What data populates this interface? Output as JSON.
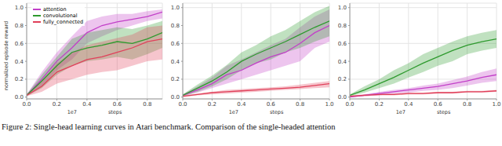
{
  "chart_data": [
    {
      "type": "line",
      "ylabel": "normalized episode reward",
      "xlabel": "steps",
      "annotations": [
        "1e7"
      ],
      "legend": "upper left",
      "grid": true,
      "x": [
        0.0,
        0.1,
        0.2,
        0.3,
        0.4,
        0.5,
        0.6,
        0.7,
        0.8,
        0.9
      ],
      "xlim": [
        0,
        0.9
      ],
      "xticks": [
        {
          "value": 0,
          "label": "0.0"
        },
        {
          "value": 0.2,
          "label": "0.2"
        },
        {
          "value": 0.4,
          "label": "0.4"
        },
        {
          "value": 0.6,
          "label": "0.6"
        },
        {
          "value": 0.8,
          "label": "0.8"
        }
      ],
      "ylim": [
        -0.02,
        1.05
      ],
      "yticks": [
        {
          "value": 0,
          "label": "0.0"
        },
        {
          "value": 0.2,
          "label": "0.2"
        },
        {
          "value": 0.4,
          "label": "0.4"
        },
        {
          "value": 0.6,
          "label": "0.6"
        },
        {
          "value": 0.8,
          "label": "0.8"
        },
        {
          "value": 1,
          "label": "1.0"
        }
      ],
      "series": [
        {
          "name": "attention",
          "color": "#c23fc8",
          "values": [
            0.02,
            0.2,
            0.4,
            0.55,
            0.72,
            0.8,
            0.84,
            0.87,
            0.9,
            0.95
          ],
          "lower": [
            0.01,
            0.12,
            0.3,
            0.42,
            0.6,
            0.68,
            0.75,
            0.8,
            0.85,
            0.88
          ],
          "upper": [
            0.03,
            0.28,
            0.5,
            0.68,
            0.85,
            0.9,
            0.93,
            0.93,
            0.96,
            0.98
          ]
        },
        {
          "name": "convolutional",
          "color": "#2e9a2e",
          "values": [
            0.02,
            0.18,
            0.35,
            0.5,
            0.55,
            0.58,
            0.62,
            0.6,
            0.65,
            0.72
          ],
          "lower": [
            0.01,
            0.1,
            0.25,
            0.35,
            0.4,
            0.42,
            0.45,
            0.42,
            0.48,
            0.55
          ],
          "upper": [
            0.03,
            0.25,
            0.45,
            0.65,
            0.72,
            0.75,
            0.78,
            0.76,
            0.8,
            0.85
          ]
        },
        {
          "name": "fully_connected",
          "color": "#e0405a",
          "values": [
            0.02,
            0.12,
            0.28,
            0.35,
            0.42,
            0.45,
            0.5,
            0.55,
            0.62,
            0.65
          ],
          "lower": [
            0.01,
            0.06,
            0.15,
            0.2,
            0.25,
            0.28,
            0.3,
            0.35,
            0.4,
            0.42
          ],
          "upper": [
            0.03,
            0.18,
            0.38,
            0.5,
            0.58,
            0.62,
            0.66,
            0.7,
            0.78,
            0.8
          ]
        }
      ]
    },
    {
      "type": "line",
      "xlabel": "steps",
      "annotations": [
        "1e7"
      ],
      "grid": true,
      "x": [
        0.0,
        0.1,
        0.2,
        0.3,
        0.4,
        0.5,
        0.6,
        0.7,
        0.8,
        0.9,
        1.0
      ],
      "xlim": [
        0,
        1
      ],
      "xticks": [
        {
          "value": 0,
          "label": "0.0"
        },
        {
          "value": 0.2,
          "label": "0.2"
        },
        {
          "value": 0.4,
          "label": "0.4"
        },
        {
          "value": 0.6,
          "label": "0.6"
        },
        {
          "value": 0.8,
          "label": "0.8"
        },
        {
          "value": 1,
          "label": "1.0"
        }
      ],
      "ylim": [
        -0.02,
        1.05
      ],
      "yticks": [
        {
          "value": 0,
          "label": "0.0"
        },
        {
          "value": 0.2,
          "label": "0.2"
        },
        {
          "value": 0.4,
          "label": "0.4"
        },
        {
          "value": 0.6,
          "label": "0.6"
        },
        {
          "value": 0.8,
          "label": "0.8"
        },
        {
          "value": 1,
          "label": "1.0"
        }
      ],
      "series": [
        {
          "name": "attention",
          "color": "#c23fc8",
          "values": [
            0.02,
            0.08,
            0.15,
            0.25,
            0.3,
            0.38,
            0.45,
            0.5,
            0.6,
            0.72,
            0.8
          ],
          "lower": [
            0.01,
            0.05,
            0.1,
            0.15,
            0.2,
            0.25,
            0.3,
            0.35,
            0.4,
            0.55,
            0.62
          ],
          "upper": [
            0.03,
            0.12,
            0.22,
            0.35,
            0.42,
            0.5,
            0.58,
            0.65,
            0.78,
            0.9,
            0.98
          ]
        },
        {
          "name": "convolutional",
          "color": "#2e9a2e",
          "values": [
            0.02,
            0.1,
            0.18,
            0.28,
            0.4,
            0.48,
            0.55,
            0.62,
            0.7,
            0.78,
            0.85
          ],
          "lower": [
            0.01,
            0.06,
            0.12,
            0.2,
            0.3,
            0.38,
            0.42,
            0.5,
            0.55,
            0.62,
            0.68
          ],
          "upper": [
            0.03,
            0.14,
            0.24,
            0.36,
            0.5,
            0.58,
            0.68,
            0.75,
            0.85,
            0.95,
            1.02
          ]
        },
        {
          "name": "fully_connected",
          "color": "#e0405a",
          "values": [
            0.01,
            0.03,
            0.05,
            0.06,
            0.07,
            0.08,
            0.09,
            0.1,
            0.11,
            0.13,
            0.15
          ],
          "lower": [
            0.0,
            0.02,
            0.03,
            0.04,
            0.05,
            0.06,
            0.07,
            0.08,
            0.09,
            0.1,
            0.11
          ],
          "upper": [
            0.02,
            0.04,
            0.06,
            0.08,
            0.09,
            0.1,
            0.11,
            0.12,
            0.14,
            0.16,
            0.18
          ]
        }
      ]
    },
    {
      "type": "line",
      "xlabel": "steps",
      "annotations": [
        "1e7"
      ],
      "grid": true,
      "x": [
        0.0,
        0.1,
        0.2,
        0.3,
        0.4,
        0.5,
        0.6,
        0.7,
        0.8,
        0.9,
        1.0
      ],
      "xlim": [
        0,
        1
      ],
      "xticks": [
        {
          "value": 0,
          "label": "0.0"
        },
        {
          "value": 0.2,
          "label": "0.2"
        },
        {
          "value": 0.4,
          "label": "0.4"
        },
        {
          "value": 0.6,
          "label": "0.6"
        },
        {
          "value": 0.8,
          "label": "0.8"
        },
        {
          "value": 1,
          "label": "1.0"
        }
      ],
      "ylim": [
        -0.02,
        1.05
      ],
      "yticks": [
        {
          "value": 0,
          "label": "0.0"
        },
        {
          "value": 0.2,
          "label": "0.2"
        },
        {
          "value": 0.4,
          "label": "0.4"
        },
        {
          "value": 0.6,
          "label": "0.6"
        },
        {
          "value": 0.8,
          "label": "0.8"
        },
        {
          "value": 1,
          "label": "1.0"
        }
      ],
      "series": [
        {
          "name": "attention",
          "color": "#c23fc8",
          "values": [
            0.0,
            0.02,
            0.04,
            0.06,
            0.08,
            0.1,
            0.12,
            0.15,
            0.18,
            0.22,
            0.25
          ],
          "lower": [
            0.0,
            0.01,
            0.02,
            0.04,
            0.05,
            0.07,
            0.08,
            0.1,
            0.13,
            0.16,
            0.18
          ],
          "upper": [
            0.01,
            0.03,
            0.06,
            0.08,
            0.1,
            0.13,
            0.15,
            0.19,
            0.23,
            0.28,
            0.32
          ]
        },
        {
          "name": "convolutional",
          "color": "#2e9a2e",
          "values": [
            0.02,
            0.08,
            0.15,
            0.22,
            0.3,
            0.38,
            0.45,
            0.52,
            0.58,
            0.62,
            0.65
          ],
          "lower": [
            0.01,
            0.05,
            0.1,
            0.15,
            0.22,
            0.28,
            0.35,
            0.4,
            0.48,
            0.52,
            0.55
          ],
          "upper": [
            0.03,
            0.12,
            0.2,
            0.3,
            0.38,
            0.48,
            0.55,
            0.62,
            0.68,
            0.72,
            0.75
          ]
        },
        {
          "name": "fully_connected",
          "color": "#e0405a",
          "values": [
            0.01,
            0.02,
            0.03,
            0.03,
            0.04,
            0.04,
            0.05,
            0.05,
            0.06,
            0.06,
            0.07
          ],
          "lower": [
            0.0,
            0.01,
            0.02,
            0.02,
            0.03,
            0.03,
            0.04,
            0.04,
            0.05,
            0.05,
            0.06
          ],
          "upper": [
            0.02,
            0.03,
            0.04,
            0.04,
            0.05,
            0.05,
            0.06,
            0.06,
            0.07,
            0.07,
            0.08
          ]
        }
      ]
    }
  ],
  "caption": "Figure 2: Single-head learning curves in Atari benchmark. Comparison of the single-headed attention"
}
